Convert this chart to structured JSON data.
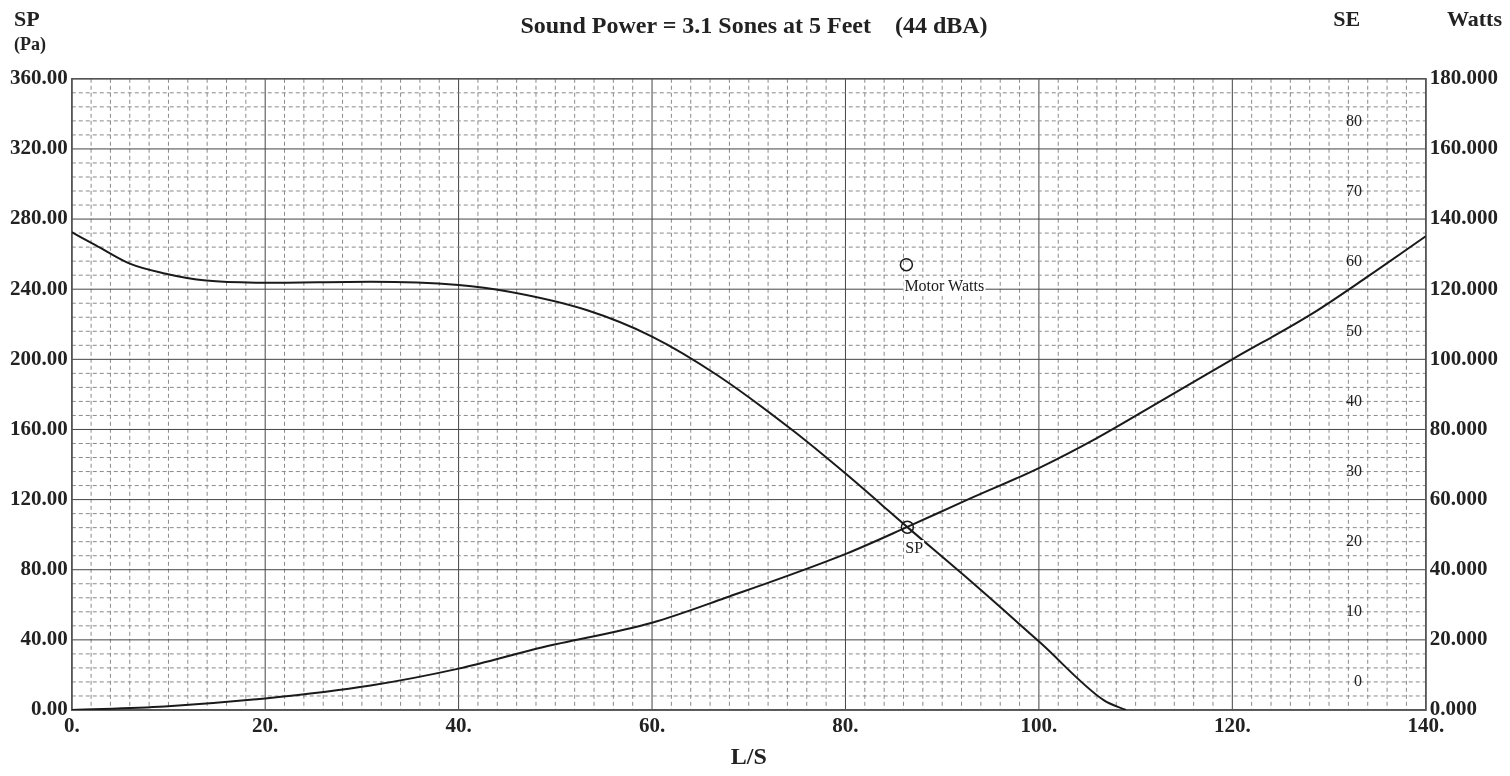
{
  "chart_data": {
    "type": "line",
    "title": "Sound Power = 3.1 Sones at 5 Feet    (44 dBA)",
    "xlabel": "L/S",
    "ylabel": "SP\n(Pa)",
    "y2label": "Watts",
    "y3label": "SE",
    "xlim": [
      0,
      140
    ],
    "xticks": [
      {
        "value": 0,
        "label": "0."
      },
      {
        "value": 2,
        "label": null
      },
      {
        "value": 4,
        "label": null
      },
      {
        "value": 6,
        "label": null
      },
      {
        "value": 8,
        "label": null
      },
      {
        "value": 10,
        "label": null
      },
      {
        "value": 12,
        "label": null
      },
      {
        "value": 14,
        "label": null
      },
      {
        "value": 16,
        "label": null
      },
      {
        "value": 18,
        "label": null
      },
      {
        "value": 20,
        "label": "20."
      },
      {
        "value": 22,
        "label": null
      },
      {
        "value": 24,
        "label": null
      },
      {
        "value": 26,
        "label": null
      },
      {
        "value": 28,
        "label": null
      },
      {
        "value": 30,
        "label": null
      },
      {
        "value": 32,
        "label": null
      },
      {
        "value": 34,
        "label": null
      },
      {
        "value": 36,
        "label": null
      },
      {
        "value": 38,
        "label": null
      },
      {
        "value": 40,
        "label": "40."
      },
      {
        "value": 42,
        "label": null
      },
      {
        "value": 44,
        "label": null
      },
      {
        "value": 46,
        "label": null
      },
      {
        "value": 48,
        "label": null
      },
      {
        "value": 50,
        "label": null
      },
      {
        "value": 52,
        "label": null
      },
      {
        "value": 54,
        "label": null
      },
      {
        "value": 56,
        "label": null
      },
      {
        "value": 58,
        "label": null
      },
      {
        "value": 60,
        "label": "60."
      },
      {
        "value": 62,
        "label": null
      },
      {
        "value": 64,
        "label": null
      },
      {
        "value": 66,
        "label": null
      },
      {
        "value": 68,
        "label": null
      },
      {
        "value": 70,
        "label": null
      },
      {
        "value": 72,
        "label": null
      },
      {
        "value": 74,
        "label": null
      },
      {
        "value": 76,
        "label": null
      },
      {
        "value": 78,
        "label": null
      },
      {
        "value": 80,
        "label": "80."
      },
      {
        "value": 82,
        "label": null
      },
      {
        "value": 84,
        "label": null
      },
      {
        "value": 86,
        "label": null
      },
      {
        "value": 88,
        "label": null
      },
      {
        "value": 90,
        "label": null
      },
      {
        "value": 92,
        "label": null
      },
      {
        "value": 94,
        "label": null
      },
      {
        "value": 96,
        "label": null
      },
      {
        "value": 98,
        "label": null
      },
      {
        "value": 100,
        "label": "100."
      },
      {
        "value": 102,
        "label": null
      },
      {
        "value": 104,
        "label": null
      },
      {
        "value": 106,
        "label": null
      },
      {
        "value": 108,
        "label": null
      },
      {
        "value": 110,
        "label": null
      },
      {
        "value": 112,
        "label": null
      },
      {
        "value": 114,
        "label": null
      },
      {
        "value": 116,
        "label": null
      },
      {
        "value": 118,
        "label": null
      },
      {
        "value": 120,
        "label": "120."
      },
      {
        "value": 122,
        "label": null
      },
      {
        "value": 124,
        "label": null
      },
      {
        "value": 126,
        "label": null
      },
      {
        "value": 128,
        "label": null
      },
      {
        "value": 130,
        "label": null
      },
      {
        "value": 132,
        "label": null
      },
      {
        "value": 134,
        "label": null
      },
      {
        "value": 136,
        "label": null
      },
      {
        "value": 138,
        "label": null
      },
      {
        "value": 140,
        "label": "140."
      }
    ],
    "ylim": [
      0,
      360
    ],
    "yticks": [
      {
        "value": 0,
        "label": "0.00"
      },
      {
        "value": 8,
        "label": null
      },
      {
        "value": 16,
        "label": null
      },
      {
        "value": 24,
        "label": null
      },
      {
        "value": 32,
        "label": null
      },
      {
        "value": 40,
        "label": "40.00"
      },
      {
        "value": 48,
        "label": null
      },
      {
        "value": 56,
        "label": null
      },
      {
        "value": 64,
        "label": null
      },
      {
        "value": 72,
        "label": null
      },
      {
        "value": 80,
        "label": "80.00"
      },
      {
        "value": 88,
        "label": null
      },
      {
        "value": 96,
        "label": null
      },
      {
        "value": 104,
        "label": null
      },
      {
        "value": 112,
        "label": null
      },
      {
        "value": 120,
        "label": "120.00"
      },
      {
        "value": 128,
        "label": null
      },
      {
        "value": 136,
        "label": null
      },
      {
        "value": 144,
        "label": null
      },
      {
        "value": 152,
        "label": null
      },
      {
        "value": 160,
        "label": "160.00"
      },
      {
        "value": 168,
        "label": null
      },
      {
        "value": 176,
        "label": null
      },
      {
        "value": 184,
        "label": null
      },
      {
        "value": 192,
        "label": null
      },
      {
        "value": 200,
        "label": "200.00"
      },
      {
        "value": 208,
        "label": null
      },
      {
        "value": 216,
        "label": null
      },
      {
        "value": 224,
        "label": null
      },
      {
        "value": 232,
        "label": null
      },
      {
        "value": 240,
        "label": "240.00"
      },
      {
        "value": 248,
        "label": null
      },
      {
        "value": 256,
        "label": null
      },
      {
        "value": 264,
        "label": null
      },
      {
        "value": 272,
        "label": null
      },
      {
        "value": 280,
        "label": "280.00"
      },
      {
        "value": 288,
        "label": null
      },
      {
        "value": 296,
        "label": null
      },
      {
        "value": 304,
        "label": null
      },
      {
        "value": 312,
        "label": null
      },
      {
        "value": 320,
        "label": "320.00"
      },
      {
        "value": 328,
        "label": null
      },
      {
        "value": 336,
        "label": null
      },
      {
        "value": 344,
        "label": null
      },
      {
        "value": 352,
        "label": null
      },
      {
        "value": 360,
        "label": "360.00"
      }
    ],
    "y2lim": [
      0,
      180
    ],
    "y2ticks": [
      {
        "value": 0,
        "label": "0.000"
      },
      {
        "value": 20,
        "label": "20.000"
      },
      {
        "value": 40,
        "label": "40.000"
      },
      {
        "value": 60,
        "label": "60.000"
      },
      {
        "value": 80,
        "label": "80.000"
      },
      {
        "value": 100,
        "label": "100.000"
      },
      {
        "value": 120,
        "label": "120.000"
      },
      {
        "value": 140,
        "label": "140.000"
      },
      {
        "value": 160,
        "label": "160.000"
      },
      {
        "value": 180,
        "label": "180.000"
      }
    ],
    "y3lim": [
      -4.1,
      86.1
    ],
    "y3ticks": [
      0,
      10,
      20,
      30,
      40,
      50,
      60,
      70,
      80
    ],
    "grid": true,
    "marker": "circle",
    "series": [
      {
        "type": "line",
        "axis": "y",
        "color": "#1a1a1a",
        "marker": "none",
        "x": [
          0,
          2.5,
          6,
          9.6,
          13.9,
          20,
          30.9,
          40,
          45.1,
          53.3,
          60,
          66.8,
          74.7,
          80.1,
          86.4,
          92.4,
          100.1,
          106.7,
          109
        ],
        "values": [
          272.5,
          265,
          254.6,
          249,
          244.9,
          243.7,
          244.3,
          242.4,
          238.7,
          228,
          213,
          190.8,
          158.8,
          134.4,
          104.3,
          76.1,
          38.6,
          5.6,
          0
        ]
      },
      {
        "type": "line",
        "axis": "y2",
        "color": "#1a1a1a",
        "marker": "none",
        "x": [
          0,
          9.6,
          20,
          30.9,
          40,
          48.7,
          60,
          67.6,
          80.1,
          86.4,
          92.4,
          100,
          105.9,
          112.6,
          120,
          128.3,
          134.1,
          140
        ],
        "values": [
          0,
          1,
          3.3,
          7,
          11.8,
          17.9,
          24.9,
          32,
          44.6,
          52.2,
          59.7,
          69,
          77.4,
          88.1,
          100,
          113.1,
          123.8,
          135.1
        ]
      },
      {
        "type": "scatter",
        "axis": "y",
        "name": "SP",
        "color": "#1a1a1a",
        "x": [
          86.4
        ],
        "values": [
          104.3
        ]
      },
      {
        "type": "scatter",
        "axis": "y2",
        "name": "Motor Watts",
        "color": "#1a1a1a",
        "x": [
          86.3
        ],
        "values": [
          127
        ]
      }
    ]
  }
}
